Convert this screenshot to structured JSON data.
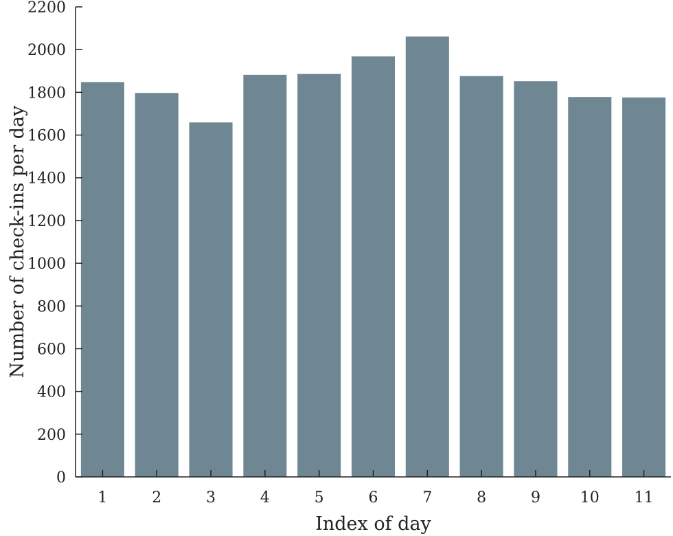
{
  "chart_data": {
    "type": "bar",
    "title": "",
    "xlabel": "Index of day",
    "ylabel": "Number of check-ins per day",
    "categories": [
      "1",
      "2",
      "3",
      "4",
      "5",
      "6",
      "7",
      "8",
      "9",
      "10",
      "11"
    ],
    "values": [
      1848,
      1797,
      1659,
      1882,
      1886,
      1968,
      2061,
      1876,
      1852,
      1778,
      1776
    ],
    "ylim": [
      0,
      2200
    ],
    "yticks": [
      0,
      200,
      400,
      600,
      800,
      1000,
      1200,
      1400,
      1600,
      1800,
      2000,
      2200
    ],
    "bar_color": "#6e8792",
    "axis_color": "#222222",
    "grid": false,
    "legend": "none"
  }
}
